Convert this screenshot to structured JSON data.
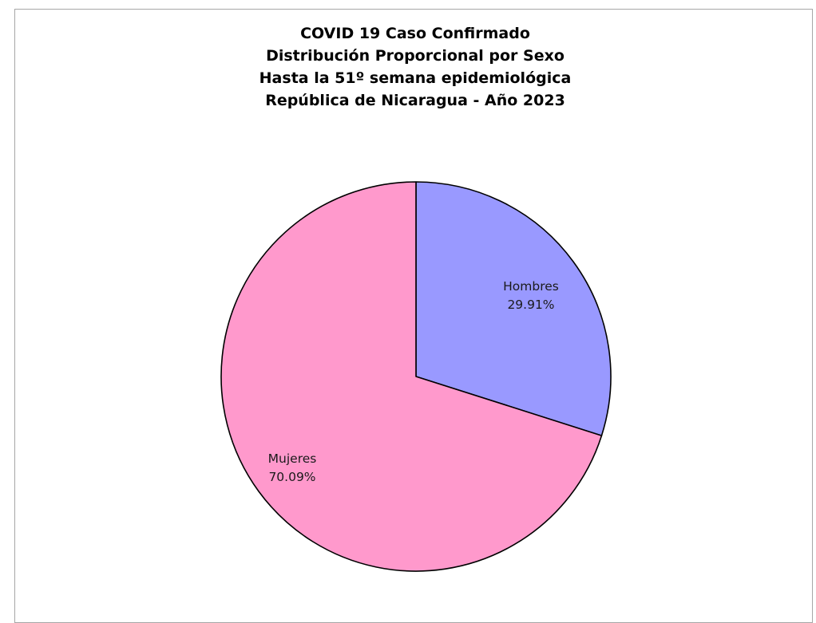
{
  "chart_data": {
    "type": "pie",
    "title_lines": [
      "COVID 19 Caso Confirmado",
      "Distribución Proporcional por Sexo",
      "Hasta la 51º semana epidemiológica",
      "República de Nicaragua - Año 2023"
    ],
    "slices": [
      {
        "label": "Hombres",
        "value": 29.91,
        "value_text": "29.91%",
        "color": "#9999ff"
      },
      {
        "label": "Mujeres",
        "value": 70.09,
        "value_text": "70.09%",
        "color": "#ff99cc"
      }
    ],
    "start_angle": "12 o'clock",
    "direction": "clockwise",
    "legend": "none"
  }
}
